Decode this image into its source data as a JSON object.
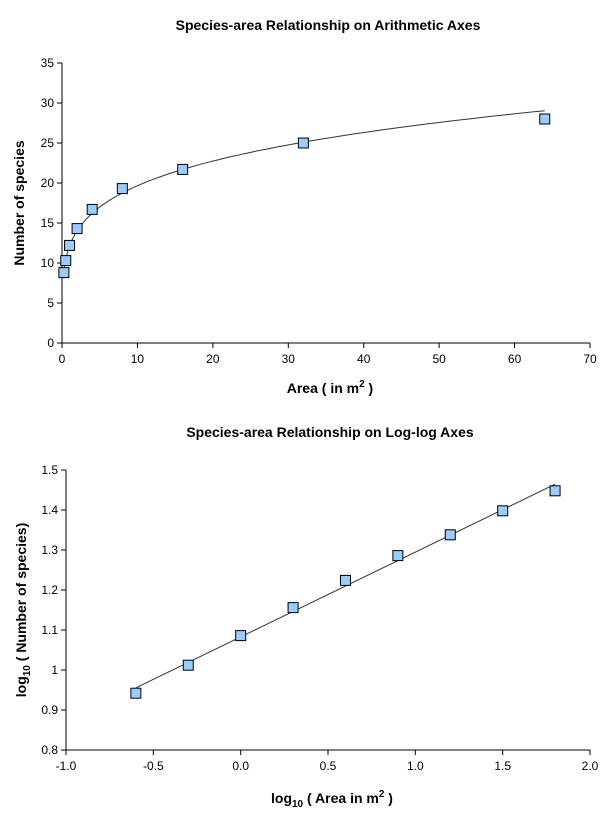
{
  "chart_data": [
    {
      "type": "scatter",
      "title": "Species-area Relationship on Arithmetic Axes",
      "xlabel": "Area ( in m",
      "xlabel_sup": "2",
      "xlabel_tail": " )",
      "ylabel": "Number of species",
      "xlim": [
        0,
        70
      ],
      "ylim": [
        0,
        35
      ],
      "x_ticks": [
        0,
        10,
        20,
        30,
        40,
        50,
        60,
        70
      ],
      "x_tick_labels": [
        "0",
        "10",
        "20",
        "30",
        "40",
        "50",
        "60",
        "70"
      ],
      "y_ticks": [
        0,
        5,
        10,
        15,
        20,
        25,
        30,
        35
      ],
      "y_tick_labels": [
        "0",
        "5",
        "10",
        "15",
        "20",
        "25",
        "30",
        "35"
      ],
      "grid": false,
      "marker": "square",
      "marker_color": "#99ccff",
      "trendline": "power",
      "series": [
        {
          "x": [
            0.25,
            0.5,
            1,
            2,
            4,
            8,
            16,
            32,
            64
          ],
          "y": [
            8.8,
            10.3,
            12.2,
            14.3,
            16.7,
            19.3,
            21.7,
            25.0,
            28.0
          ]
        }
      ]
    },
    {
      "type": "scatter",
      "title": "Species-area Relationship on Log-log Axes",
      "xlabel_prefix": "log",
      "xlabel_sub": "10",
      "xlabel_mid": " ( Area in m",
      "xlabel_sup": "2",
      "xlabel_tail": " )",
      "ylabel_prefix": "log",
      "ylabel_sub": "10",
      "ylabel_tail": " ( Number of species)",
      "xlim": [
        -1.0,
        2.0
      ],
      "ylim": [
        0.8,
        1.5
      ],
      "x_ticks": [
        -1.0,
        -0.5,
        0,
        0.5,
        1.0,
        1.5,
        2.0
      ],
      "x_tick_labels": [
        "-1.0",
        "-0.5",
        "0.0",
        "0.5",
        "1.0",
        "1.5",
        "2.0"
      ],
      "y_ticks": [
        0.8,
        0.9,
        1.0,
        1.1,
        1.2,
        1.3,
        1.4,
        1.5
      ],
      "y_tick_labels": [
        "0.8",
        "0.9",
        "1",
        "1.1",
        "1.2",
        "1.3",
        "1.4",
        "1.5"
      ],
      "grid": false,
      "marker": "square",
      "marker_color": "#99ccff",
      "trendline": "linear",
      "series": [
        {
          "x": [
            -0.6,
            -0.3,
            0.0,
            0.3,
            0.6,
            0.9,
            1.2,
            1.5,
            1.8
          ],
          "y": [
            0.942,
            1.012,
            1.086,
            1.156,
            1.224,
            1.286,
            1.338,
            1.398,
            1.448
          ]
        }
      ]
    }
  ]
}
